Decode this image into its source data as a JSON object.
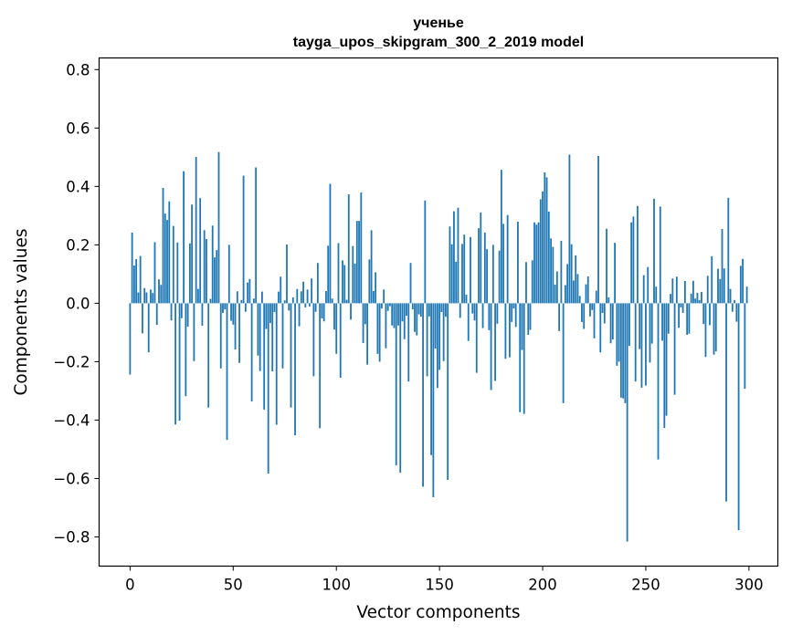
{
  "chart_data": {
    "type": "bar",
    "title": "ученье",
    "subtitle": "tayga_upos_skipgram_300_2_2019 model",
    "xlabel": "Vector components",
    "ylabel": "Components values",
    "xlim": [
      -15,
      314
    ],
    "ylim": [
      -0.9,
      0.84
    ],
    "xticks": [
      0,
      50,
      100,
      150,
      200,
      250,
      300
    ],
    "yticks": [
      -0.8,
      -0.6,
      -0.4,
      -0.2,
      0.0,
      0.2,
      0.4,
      0.6,
      0.8
    ],
    "ytick_labels": [
      "−0.8",
      "−0.6",
      "−0.4",
      "−0.2",
      "0.0",
      "0.2",
      "0.4",
      "0.6",
      "0.8"
    ],
    "bar_color": "#1f77b4",
    "values": [
      -0.244,
      0.242,
      0.129,
      0.151,
      0.037,
      0.162,
      -0.103,
      0.052,
      0.037,
      -0.168,
      0.047,
      0.035,
      0.209,
      -0.074,
      0.082,
      0.063,
      0.395,
      0.307,
      0.285,
      0.349,
      -0.059,
      0.265,
      -0.415,
      0.208,
      -0.402,
      -0.051,
      0.452,
      -0.318,
      -0.08,
      0.205,
      0.338,
      -0.198,
      0.501,
      0.049,
      0.36,
      -0.077,
      0.25,
      0.22,
      -0.357,
      0.015,
      0.266,
      0.157,
      0.182,
      0.518,
      -0.223,
      -0.033,
      -0.021,
      -0.468,
      0.2,
      -0.06,
      -0.073,
      -0.158,
      0.041,
      -0.204,
      0.011,
      0.437,
      -0.029,
      0.071,
      0.083,
      -0.336,
      0.016,
      0.465,
      -0.179,
      -0.232,
      0.04,
      -0.364,
      -0.088,
      -0.583,
      -0.068,
      -0.233,
      -0.03,
      -0.416,
      0.04,
      0.091,
      -0.223,
      0.01,
      0.201,
      -0.025,
      -0.357,
      0.02,
      -0.452,
      0.049,
      -0.079,
      0.041,
      0.074,
      -0.014,
      0.047,
      -0.011,
      0.085,
      -0.25,
      -0.029,
      0.138,
      -0.428,
      -0.052,
      -0.062,
      0.042,
      0.197,
      0.409,
      0.016,
      -0.09,
      -0.173,
      0.206,
      -0.255,
      0.147,
      0.131,
      0.012,
      0.373,
      -0.056,
      0.196,
      0.136,
      0.282,
      0.282,
      0.379,
      -0.136,
      -0.072,
      -0.21,
      0.15,
      0.25,
      0.042,
      0.106,
      -0.173,
      -0.2,
      -0.018,
      0.047,
      -0.154,
      -0.026,
      -0.01,
      -0.076,
      -0.085,
      -0.555,
      -0.076,
      -0.58,
      -0.062,
      -0.123,
      -0.043,
      -0.268,
      0.138,
      -0.021,
      -0.098,
      -0.11,
      -0.038,
      -0.046,
      -0.628,
      0.352,
      -0.25,
      -0.045,
      -0.52,
      -0.664,
      -0.155,
      -0.29,
      -0.228,
      -0.03,
      -0.198,
      -0.046,
      -0.605,
      0.263,
      0.202,
      0.315,
      0.142,
      0.327,
      -0.05,
      0.203,
      0.235,
      0.029,
      -0.129,
      0.227,
      -0.035,
      -0.059,
      -0.238,
      0.257,
      0.311,
      -0.085,
      0.242,
      0.185,
      -0.092,
      -0.297,
      0.2,
      -0.266,
      -0.07,
      0.18,
      0.457,
      0.272,
      -0.19,
      0.302,
      -0.185,
      -0.064,
      -0.018,
      -0.081,
      0.279,
      -0.373,
      -0.16,
      -0.379,
      0.141,
      -0.108,
      -0.091,
      0.147,
      0.277,
      0.269,
      0.277,
      0.356,
      0.383,
      0.448,
      0.431,
      0.314,
      0.222,
      0.193,
      0.064,
      0.109,
      -0.095,
      0.214,
      -0.342,
      0.062,
      0.134,
      0.509,
      0.202,
      0.078,
      0.164,
      0.1,
      0.025,
      -0.064,
      -0.088,
      0.065,
      0.092,
      -0.045,
      -0.023,
      -0.12,
      0.043,
      0.504,
      -0.168,
      -0.033,
      -0.069,
      0.255,
      0.02,
      -0.137,
      -0.124,
      0.207,
      -0.214,
      -0.2,
      -0.323,
      -0.326,
      -0.342,
      -0.816,
      -0.146,
      0.277,
      0.297,
      -0.268,
      0.333,
      -0.157,
      -0.289,
      0.096,
      -0.282,
      0.124,
      -0.203,
      -0.138,
      0.358,
      0.057,
      -0.535,
      0.331,
      -0.128,
      -0.427,
      -0.385,
      -0.104,
      0.032,
      0.085,
      -0.313,
      0.091,
      -0.084,
      -0.014,
      -0.033,
      0.076,
      -0.108,
      -0.104,
      0.033,
      0.077,
      0.016,
      0.036,
      0.011,
      0.039,
      -0.071,
      -0.184,
      0.094,
      -0.075,
      0.161,
      -0.176,
      -0.165,
      0.118,
      0.083,
      0.254,
      0.119,
      -0.679,
      0.361,
      0.049,
      -0.029,
      0.011,
      -0.063,
      -0.777,
      0.128,
      0.152,
      -0.293,
      0.057
    ]
  }
}
